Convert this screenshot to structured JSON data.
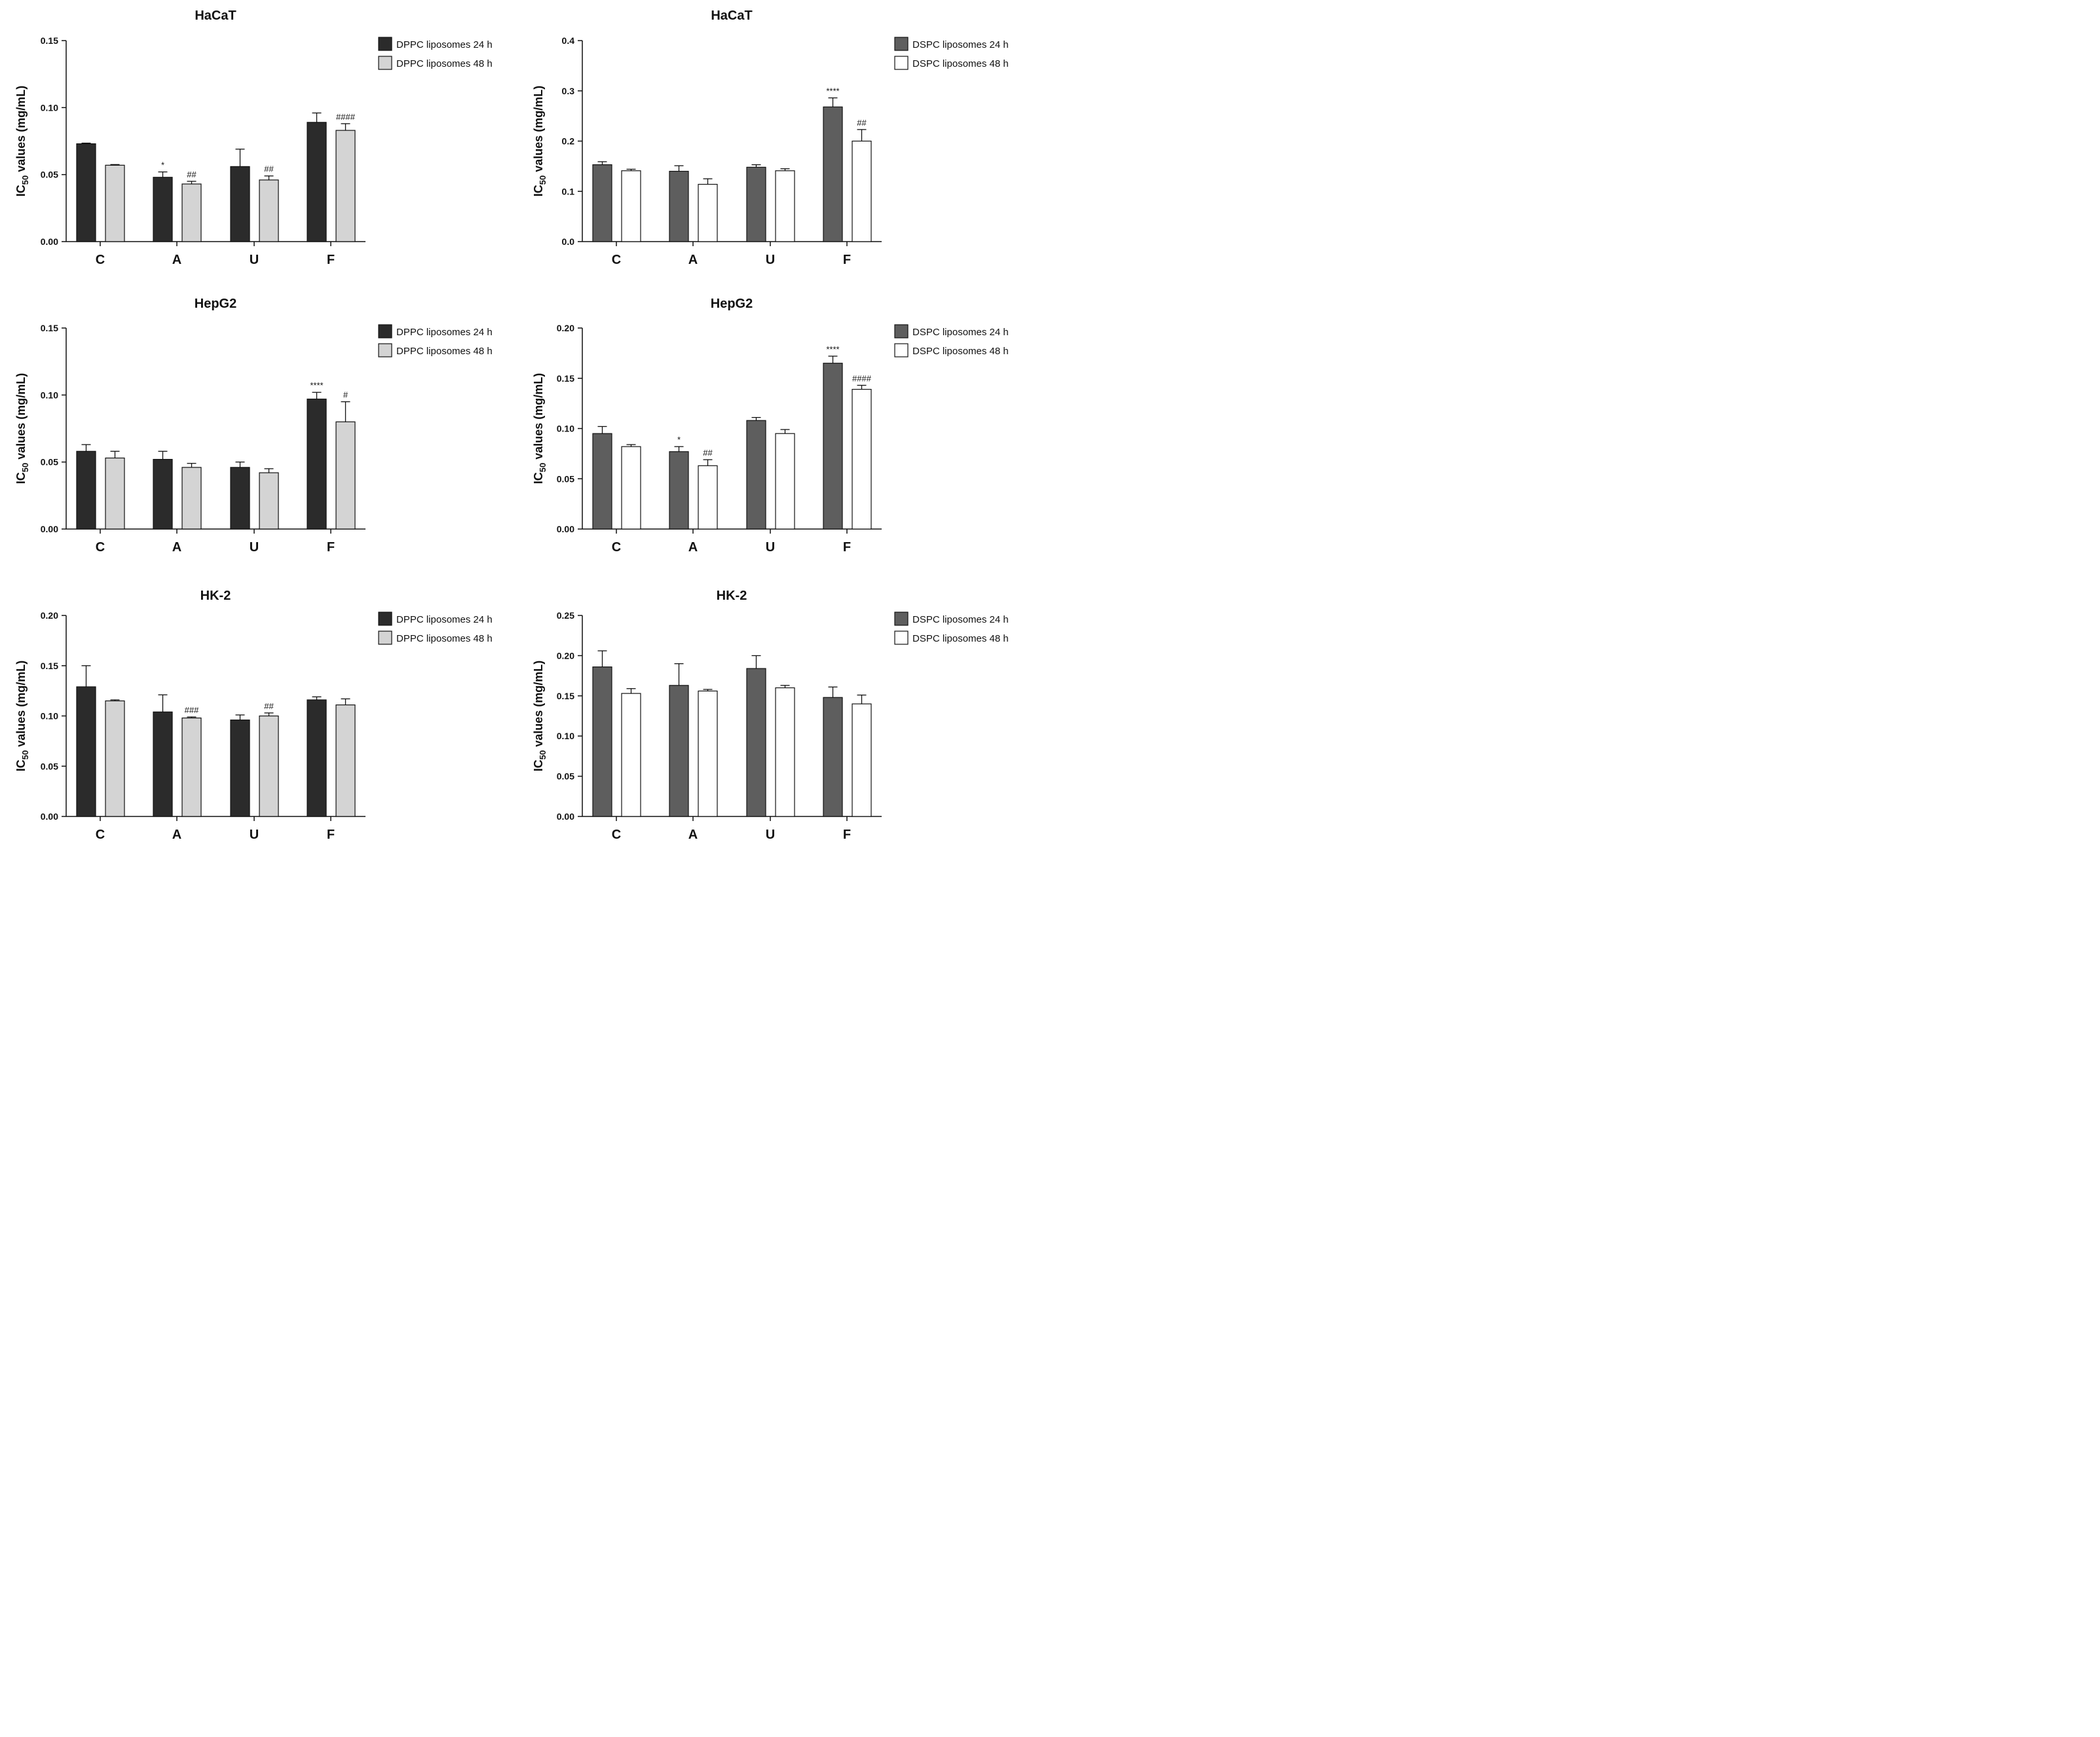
{
  "chart_data": [
    {
      "type": "bar",
      "title": "HaCaT",
      "ylabel_main": "IC",
      "ylabel_sub": "50",
      "ylabel_rest": " values (mg/mL)",
      "ylim": [
        0,
        0.15
      ],
      "yticks": [
        "0.00",
        "0.05",
        "0.10",
        "0.15"
      ],
      "categories": [
        "C",
        "A",
        "U",
        "F"
      ],
      "legend_position": "top-right",
      "series": [
        {
          "name": "DPPC liposomes 24 h",
          "color": "#2b2b2b",
          "values": [
            0.073,
            0.048,
            0.056,
            0.089
          ],
          "errors": [
            0.0005,
            0.004,
            0.013,
            0.007
          ],
          "annotations": [
            "",
            "*",
            "",
            ""
          ]
        },
        {
          "name": "DPPC liposomes 48 h",
          "color": "#d4d4d4",
          "values": [
            0.057,
            0.043,
            0.046,
            0.083
          ],
          "errors": [
            0.0005,
            0.002,
            0.003,
            0.005
          ],
          "annotations": [
            "",
            "##",
            "##",
            "####"
          ]
        }
      ]
    },
    {
      "type": "bar",
      "title": "HaCaT",
      "ylabel_main": "IC",
      "ylabel_sub": "50",
      "ylabel_rest": " values (mg/mL)",
      "ylim": [
        0,
        0.4
      ],
      "yticks": [
        "0.0",
        "0.1",
        "0.2",
        "0.3",
        "0.4"
      ],
      "categories": [
        "C",
        "A",
        "U",
        "F"
      ],
      "legend_position": "top-right",
      "series": [
        {
          "name": "DSPC liposomes 24 h",
          "color": "#5e5e5e",
          "values": [
            0.153,
            0.14,
            0.148,
            0.268
          ],
          "errors": [
            0.006,
            0.011,
            0.005,
            0.018
          ],
          "annotations": [
            "",
            "",
            "",
            "****"
          ]
        },
        {
          "name": "DSPC liposomes 48 h",
          "color": "#ffffff",
          "values": [
            0.141,
            0.114,
            0.141,
            0.2
          ],
          "errors": [
            0.003,
            0.011,
            0.004,
            0.023
          ],
          "annotations": [
            "",
            "",
            "",
            "##"
          ]
        }
      ]
    },
    {
      "type": "bar",
      "title": "HepG2",
      "ylabel_main": "IC",
      "ylabel_sub": "50",
      "ylabel_rest": " values (mg/mL)",
      "ylim": [
        0,
        0.15
      ],
      "yticks": [
        "0.00",
        "0.05",
        "0.10",
        "0.15"
      ],
      "categories": [
        "C",
        "A",
        "U",
        "F"
      ],
      "legend_position": "top-right",
      "series": [
        {
          "name": "DPPC liposomes 24 h",
          "color": "#2b2b2b",
          "values": [
            0.058,
            0.052,
            0.046,
            0.097
          ],
          "errors": [
            0.005,
            0.006,
            0.004,
            0.005
          ],
          "annotations": [
            "",
            "",
            "",
            "****"
          ]
        },
        {
          "name": "DPPC liposomes 48 h",
          "color": "#d4d4d4",
          "values": [
            0.053,
            0.046,
            0.042,
            0.08
          ],
          "errors": [
            0.005,
            0.003,
            0.003,
            0.015
          ],
          "annotations": [
            "",
            "",
            "",
            "#"
          ]
        }
      ]
    },
    {
      "type": "bar",
      "title": "HepG2",
      "ylabel_main": "IC",
      "ylabel_sub": "50",
      "ylabel_rest": " values (mg/mL)",
      "ylim": [
        0,
        0.2
      ],
      "yticks": [
        "0.00",
        "0.05",
        "0.10",
        "0.15",
        "0.20"
      ],
      "categories": [
        "C",
        "A",
        "U",
        "F"
      ],
      "legend_position": "top-right",
      "series": [
        {
          "name": "DSPC liposomes 24 h",
          "color": "#5e5e5e",
          "values": [
            0.095,
            0.077,
            0.108,
            0.165
          ],
          "errors": [
            0.007,
            0.005,
            0.003,
            0.007
          ],
          "annotations": [
            "",
            "*",
            "",
            "****"
          ]
        },
        {
          "name": "DSPC liposomes 48 h",
          "color": "#ffffff",
          "values": [
            0.082,
            0.063,
            0.095,
            0.139
          ],
          "errors": [
            0.002,
            0.006,
            0.004,
            0.004
          ],
          "annotations": [
            "",
            "##",
            "",
            "####"
          ]
        }
      ]
    },
    {
      "type": "bar",
      "title": "HK-2",
      "ylabel_main": "IC",
      "ylabel_sub": "50",
      "ylabel_rest": " values (mg/mL)",
      "ylim": [
        0,
        0.2
      ],
      "yticks": [
        "0.00",
        "0.05",
        "0.10",
        "0.15",
        "0.20"
      ],
      "categories": [
        "C",
        "A",
        "U",
        "F"
      ],
      "legend_position": "top-right",
      "series": [
        {
          "name": "DPPC liposomes 24 h",
          "color": "#2b2b2b",
          "values": [
            0.129,
            0.104,
            0.096,
            0.116
          ],
          "errors": [
            0.021,
            0.017,
            0.005,
            0.003
          ],
          "annotations": [
            "",
            "",
            "",
            ""
          ]
        },
        {
          "name": "DPPC liposomes 48 h",
          "color": "#d4d4d4",
          "values": [
            0.115,
            0.098,
            0.1,
            0.111
          ],
          "errors": [
            0.001,
            0.001,
            0.003,
            0.006
          ],
          "annotations": [
            "",
            "###",
            "##",
            ""
          ]
        }
      ]
    },
    {
      "type": "bar",
      "title": "HK-2",
      "ylabel_main": "IC",
      "ylabel_sub": "50",
      "ylabel_rest": " values (mg/mL)",
      "ylim": [
        0,
        0.25
      ],
      "yticks": [
        "0.00",
        "0.05",
        "0.10",
        "0.15",
        "0.20",
        "0.25"
      ],
      "categories": [
        "C",
        "A",
        "U",
        "F"
      ],
      "legend_position": "top-right",
      "series": [
        {
          "name": "DSPC liposomes 24 h",
          "color": "#5e5e5e",
          "values": [
            0.186,
            0.163,
            0.184,
            0.148
          ],
          "errors": [
            0.02,
            0.027,
            0.016,
            0.013
          ],
          "annotations": [
            "",
            "",
            "",
            ""
          ]
        },
        {
          "name": "DSPC liposomes 48 h",
          "color": "#ffffff",
          "values": [
            0.153,
            0.156,
            0.16,
            0.14
          ],
          "errors": [
            0.006,
            0.002,
            0.003,
            0.011
          ],
          "annotations": [
            "",
            "",
            "",
            ""
          ]
        }
      ]
    }
  ]
}
